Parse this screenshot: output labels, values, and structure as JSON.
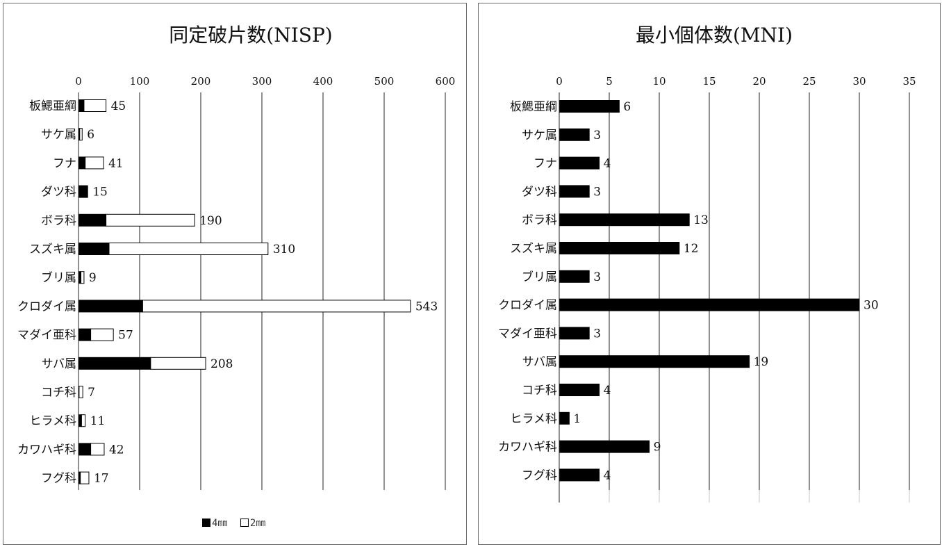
{
  "chart_data": [
    {
      "type": "bar",
      "stacked": true,
      "orientation": "horizontal",
      "title": "同定破片数(NISP)",
      "categories": [
        "板鰓亜綱",
        "サケ属",
        "フナ",
        "ダツ科",
        "ボラ科",
        "スズキ属",
        "ブリ属",
        "クロダイ属",
        "マダイ亜科",
        "サバ属",
        "コチ科",
        "ヒラメ科",
        "カワハギ科",
        "フグ科"
      ],
      "series": [
        {
          "name": "4㎜",
          "color": "#000000",
          "values": [
            9,
            2,
            11,
            15,
            45,
            50,
            4,
            105,
            20,
            118,
            1,
            5,
            20,
            3
          ]
        },
        {
          "name": "2㎜",
          "color": "#ffffff",
          "values": [
            36,
            4,
            30,
            0,
            145,
            260,
            5,
            438,
            37,
            90,
            6,
            6,
            22,
            14
          ]
        }
      ],
      "totals": [
        45,
        6,
        41,
        15,
        190,
        310,
        9,
        543,
        57,
        208,
        7,
        11,
        42,
        17
      ],
      "xlim": [
        0,
        600
      ],
      "xticks": [
        0,
        100,
        200,
        300,
        400,
        500,
        600
      ],
      "grid": true,
      "legend_position": "bottom"
    },
    {
      "type": "bar",
      "orientation": "horizontal",
      "title": "最小個体数(MNI)",
      "categories": [
        "板鰓亜綱",
        "サケ属",
        "フナ",
        "ダツ科",
        "ボラ科",
        "スズキ属",
        "ブリ属",
        "クロダイ属",
        "マダイ亜科",
        "サバ属",
        "コチ科",
        "ヒラメ科",
        "カワハギ科",
        "フグ科"
      ],
      "series": [
        {
          "color": "#000000",
          "values": [
            6,
            3,
            4,
            3,
            13,
            12,
            3,
            30,
            3,
            19,
            4,
            1,
            9,
            4
          ]
        }
      ],
      "xlim": [
        0,
        35
      ],
      "xticks": [
        0,
        5,
        10,
        15,
        20,
        25,
        30,
        35
      ],
      "grid": true
    }
  ],
  "legend": {
    "solid_label": "4㎜",
    "hollow_label": "2㎜"
  }
}
